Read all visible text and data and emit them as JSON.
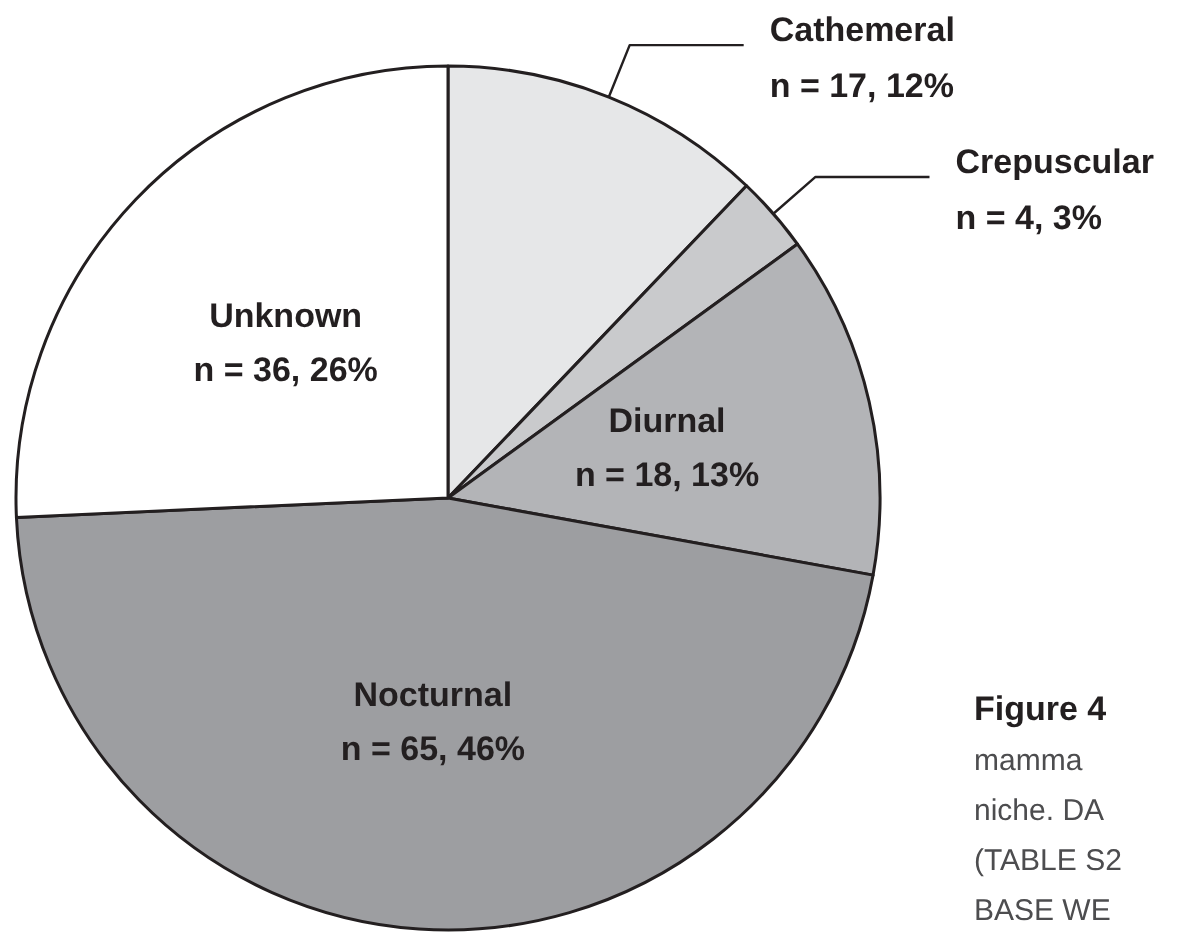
{
  "chart_data": {
    "type": "pie",
    "categories": [
      "Cathemeral",
      "Crepuscular",
      "Diurnal",
      "Nocturnal",
      "Unknown"
    ],
    "values": [
      17,
      4,
      18,
      65,
      36
    ],
    "colors": [
      "#e6e7e8",
      "#c9cacc",
      "#b3b4b7",
      "#9d9ea1",
      "#ffffff"
    ],
    "value_labels": [
      "n = 17, 12%",
      "n = 4, 3%",
      "n = 18, 13%",
      "n = 65, 46%",
      "n = 36, 26%"
    ],
    "annotations": [
      "Figure 4",
      "mamma",
      "niche. DA",
      "(TABLE S2",
      "BASE WE"
    ]
  }
}
